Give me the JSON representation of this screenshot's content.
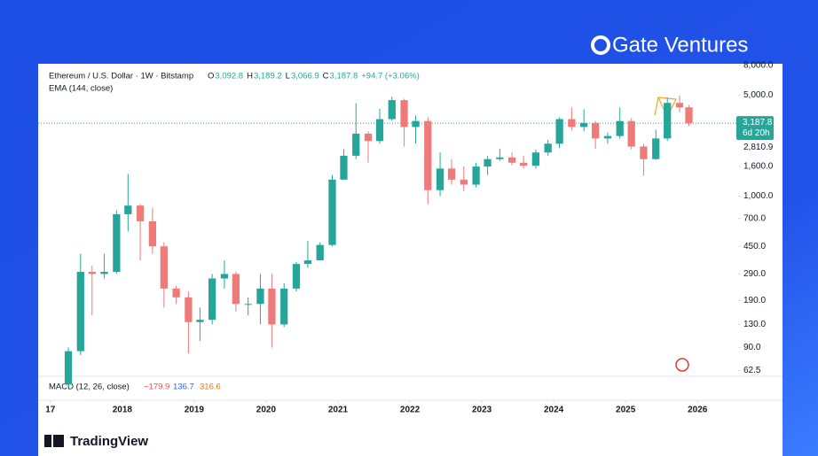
{
  "brand": "Gate Ventures",
  "footer": "TradingView",
  "chart_data": {
    "type": "candlestick",
    "title": "Ethereum / U.S. Dollar · 1W · Bitstamp",
    "ohlc_labels": [
      "O",
      "H",
      "L",
      "C"
    ],
    "ohlc_values": [
      "3,092.8",
      "3,189.2",
      "3,066.9",
      "3,187.8"
    ],
    "change": "+94.7 (+3.06%)",
    "indicator": "EMA (144, close)",
    "macd_label": "MACD (12, 26, close)",
    "macd_values": [
      "−179.9",
      "136.7",
      "316.6"
    ],
    "ema_label": "2,810.9",
    "last_price": 3187.8,
    "last_price_label": "3,187.8",
    "countdown": "6d 20h",
    "up_color": "#26a69a",
    "down_color": "#ef7a7a",
    "log_y": true,
    "xlim": [
      2016.83,
      2026.54
    ],
    "xticks": [
      {
        "value": 2017,
        "label": "17"
      },
      2018,
      2019,
      2020,
      2021,
      2022,
      2023,
      2024,
      2025,
      2026
    ],
    "ylim": [
      57,
      8200
    ],
    "yticks": [
      {
        "value": 62.5,
        "label": "62.5"
      },
      {
        "value": 90,
        "label": "90.0"
      },
      {
        "value": 130,
        "label": "130.0"
      },
      {
        "value": 190,
        "label": "190.0"
      },
      {
        "value": 290,
        "label": "290.0"
      },
      {
        "value": 450,
        "label": "450.0"
      },
      {
        "value": 700,
        "label": "700.0"
      },
      {
        "value": 1000,
        "label": "1,000.0"
      },
      {
        "value": 1600,
        "label": "1,600.0"
      },
      {
        "value": 5000,
        "label": "5,000.0"
      },
      {
        "value": 8000,
        "label": "8,000.0"
      }
    ],
    "x": [
      2017.25,
      2017.42,
      2017.58,
      2017.75,
      2017.92,
      2018.08,
      2018.25,
      2018.42,
      2018.58,
      2018.75,
      2018.92,
      2019.08,
      2019.25,
      2019.42,
      2019.58,
      2019.75,
      2019.92,
      2020.08,
      2020.25,
      2020.42,
      2020.58,
      2020.75,
      2020.92,
      2021.08,
      2021.25,
      2021.42,
      2021.58,
      2021.75,
      2021.92,
      2022.08,
      2022.25,
      2022.42,
      2022.58,
      2022.75,
      2022.92,
      2023.08,
      2023.25,
      2023.42,
      2023.58,
      2023.75,
      2023.92,
      2024.08,
      2024.25,
      2024.42,
      2024.58,
      2024.75,
      2024.92,
      2025.08,
      2025.25,
      2025.42,
      2025.58,
      2025.75,
      2025.88
    ],
    "open": [
      50,
      85,
      300,
      290,
      300,
      750,
      860,
      670,
      450,
      230,
      200,
      135,
      140,
      270,
      290,
      180,
      180,
      230,
      130,
      230,
      340,
      360,
      460,
      1300,
      1900,
      2700,
      2400,
      3400,
      4600,
      3000,
      3300,
      1100,
      1550,
      1300,
      1200,
      1600,
      1800,
      1850,
      1700,
      1620,
      2000,
      2300,
      3400,
      3000,
      3200,
      2500,
      2600,
      3300,
      2200,
      1800,
      2500,
      4400,
      4100
    ],
    "high": [
      90,
      400,
      330,
      400,
      800,
      1420,
      880,
      830,
      480,
      240,
      220,
      170,
      290,
      360,
      300,
      200,
      290,
      290,
      250,
      350,
      490,
      480,
      1400,
      2100,
      4380,
      2800,
      4000,
      4870,
      4700,
      3600,
      3500,
      2000,
      1800,
      1600,
      1700,
      1900,
      2130,
      2000,
      1900,
      2100,
      2450,
      3500,
      4090,
      3980,
      3300,
      2750,
      4100,
      3450,
      2300,
      2880,
      4800,
      4950,
      4250
    ],
    "low": [
      48,
      80,
      150,
      270,
      290,
      570,
      360,
      400,
      170,
      180,
      82,
      100,
      130,
      230,
      160,
      150,
      130,
      90,
      125,
      220,
      320,
      360,
      450,
      1300,
      1800,
      1700,
      2300,
      3300,
      2200,
      2300,
      880,
      1000,
      1200,
      1080,
      1150,
      1400,
      1750,
      1630,
      1550,
      1550,
      1900,
      2150,
      2850,
      2800,
      2120,
      2300,
      2500,
      2100,
      1390,
      1780,
      2400,
      3800,
      3050
    ],
    "close": [
      85,
      300,
      290,
      300,
      750,
      860,
      670,
      450,
      230,
      200,
      135,
      140,
      270,
      290,
      180,
      180,
      230,
      130,
      230,
      340,
      360,
      460,
      1300,
      1900,
      2700,
      2400,
      3400,
      4600,
      3000,
      3300,
      1100,
      1550,
      1300,
      1200,
      1600,
      1800,
      1850,
      1700,
      1620,
      2000,
      2300,
      3400,
      3000,
      3200,
      2500,
      2600,
      3300,
      2200,
      1800,
      2500,
      4400,
      4100,
      3187.8
    ]
  }
}
